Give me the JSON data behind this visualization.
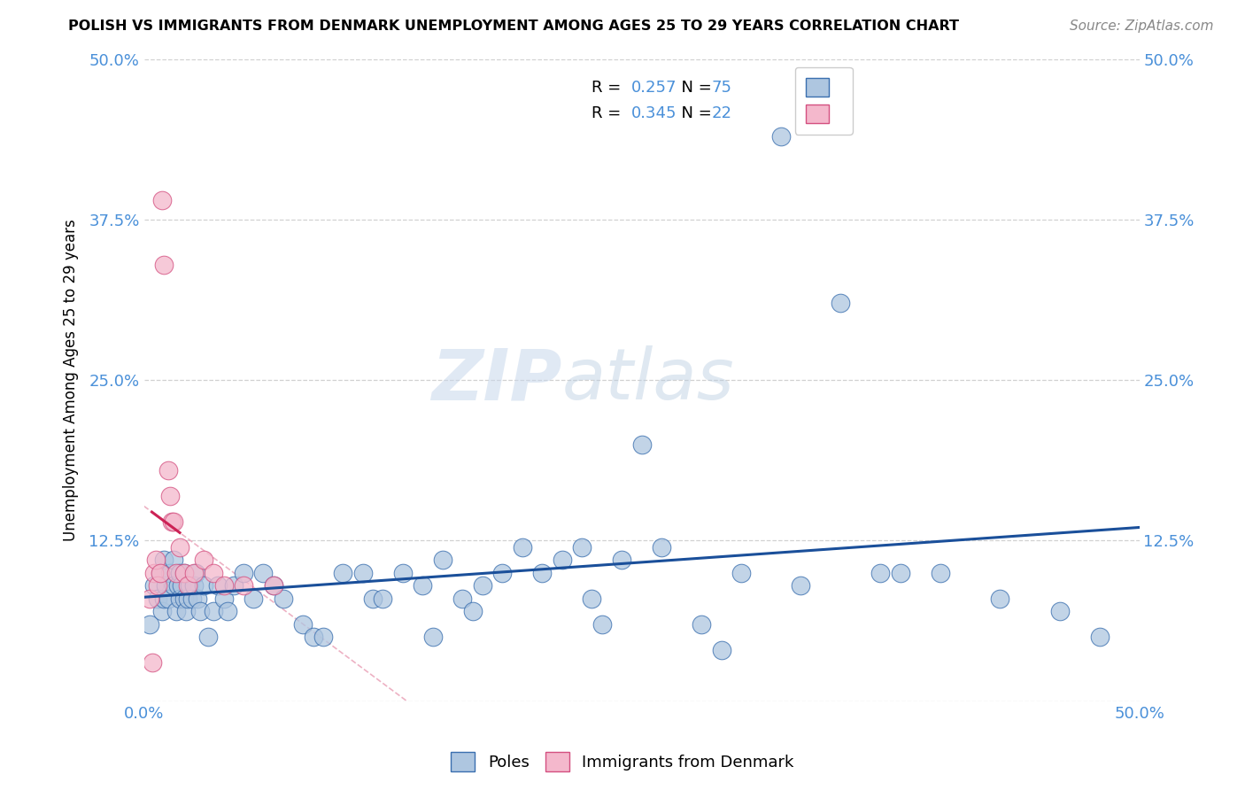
{
  "title": "POLISH VS IMMIGRANTS FROM DENMARK UNEMPLOYMENT AMONG AGES 25 TO 29 YEARS CORRELATION CHART",
  "source": "Source: ZipAtlas.com",
  "ylabel": "Unemployment Among Ages 25 to 29 years",
  "xlim": [
    0.0,
    0.5
  ],
  "ylim": [
    0.0,
    0.5
  ],
  "poles_R": 0.257,
  "poles_N": 75,
  "denmark_R": 0.345,
  "denmark_N": 22,
  "poles_color": "#aec6e0",
  "poles_edge_color": "#3a6faf",
  "poles_line_color": "#1a4f9a",
  "denmark_color": "#f4b8cc",
  "denmark_edge_color": "#d45080",
  "denmark_line_color": "#cc2255",
  "watermark_zip": "ZIP",
  "watermark_atlas": "atlas",
  "tick_color": "#4a90d9",
  "poles_x": [
    0.003,
    0.005,
    0.007,
    0.008,
    0.009,
    0.01,
    0.01,
    0.011,
    0.012,
    0.013,
    0.015,
    0.015,
    0.016,
    0.017,
    0.018,
    0.018,
    0.019,
    0.02,
    0.02,
    0.021,
    0.022,
    0.023,
    0.024,
    0.025,
    0.026,
    0.027,
    0.028,
    0.03,
    0.032,
    0.035,
    0.037,
    0.04,
    0.042,
    0.045,
    0.05,
    0.055,
    0.06,
    0.065,
    0.07,
    0.08,
    0.085,
    0.09,
    0.1,
    0.11,
    0.115,
    0.12,
    0.13,
    0.14,
    0.145,
    0.15,
    0.16,
    0.165,
    0.17,
    0.18,
    0.19,
    0.2,
    0.21,
    0.22,
    0.225,
    0.23,
    0.24,
    0.25,
    0.26,
    0.28,
    0.29,
    0.3,
    0.32,
    0.33,
    0.35,
    0.37,
    0.38,
    0.4,
    0.43,
    0.46,
    0.48
  ],
  "poles_y": [
    0.06,
    0.09,
    0.08,
    0.1,
    0.07,
    0.08,
    0.11,
    0.09,
    0.08,
    0.1,
    0.09,
    0.11,
    0.07,
    0.09,
    0.08,
    0.1,
    0.09,
    0.08,
    0.1,
    0.07,
    0.08,
    0.09,
    0.08,
    0.09,
    0.1,
    0.08,
    0.07,
    0.09,
    0.05,
    0.07,
    0.09,
    0.08,
    0.07,
    0.09,
    0.1,
    0.08,
    0.1,
    0.09,
    0.08,
    0.06,
    0.05,
    0.05,
    0.1,
    0.1,
    0.08,
    0.08,
    0.1,
    0.09,
    0.05,
    0.11,
    0.08,
    0.07,
    0.09,
    0.1,
    0.12,
    0.1,
    0.11,
    0.12,
    0.08,
    0.06,
    0.11,
    0.2,
    0.12,
    0.06,
    0.04,
    0.1,
    0.44,
    0.09,
    0.31,
    0.1,
    0.1,
    0.1,
    0.08,
    0.07,
    0.05
  ],
  "denmark_x": [
    0.003,
    0.004,
    0.005,
    0.006,
    0.007,
    0.008,
    0.009,
    0.01,
    0.012,
    0.013,
    0.014,
    0.015,
    0.016,
    0.018,
    0.02,
    0.022,
    0.025,
    0.03,
    0.035,
    0.04,
    0.05,
    0.065
  ],
  "denmark_y": [
    0.08,
    0.03,
    0.1,
    0.11,
    0.09,
    0.1,
    0.39,
    0.34,
    0.18,
    0.16,
    0.14,
    0.14,
    0.1,
    0.12,
    0.1,
    0.09,
    0.1,
    0.11,
    0.1,
    0.09,
    0.09,
    0.09
  ]
}
